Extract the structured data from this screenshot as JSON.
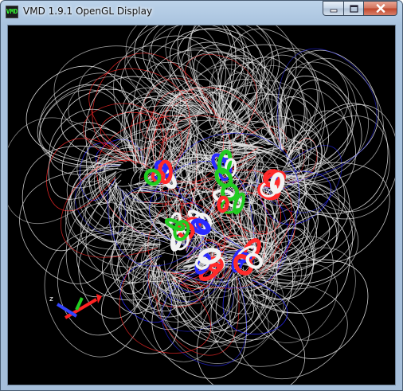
{
  "window": {
    "title": "VMD 1.9.1 OpenGL Display",
    "icon_text": "VMD",
    "controls": {
      "minimize": "minimize-icon",
      "maximize": "maximize-icon",
      "close": "close-icon"
    }
  },
  "display": {
    "background": "#000000",
    "axes_label": "z",
    "colors": {
      "field_lines": "#e8e8e8",
      "positive": "#2a2aff",
      "negative": "#ff2a2a",
      "helix_green": "#22cc22",
      "helix_white": "#f2f2f2"
    }
  }
}
